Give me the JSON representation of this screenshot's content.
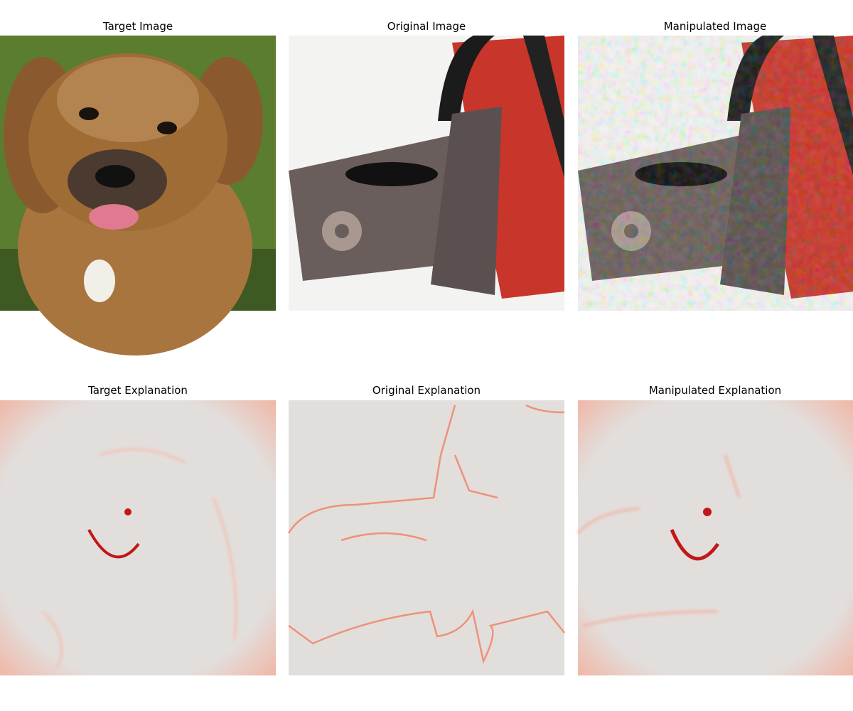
{
  "panels": [
    {
      "title": "Target Image"
    },
    {
      "title": "Original Image"
    },
    {
      "title": "Manipulated Image"
    },
    {
      "title": "Target Explanation"
    },
    {
      "title": "Original Explanation"
    },
    {
      "title": "Manipulated Explanation"
    }
  ]
}
